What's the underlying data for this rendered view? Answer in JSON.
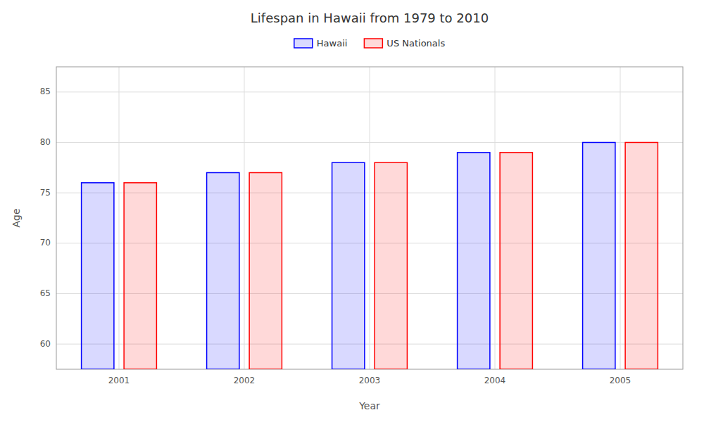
{
  "chart_data": {
    "type": "bar",
    "title": "Lifespan in Hawaii from 1979 to 2010",
    "x_label": "Year",
    "y_label": "Age",
    "categories": [
      "2001",
      "2002",
      "2003",
      "2004",
      "2005"
    ],
    "series": [
      {
        "name": "Hawaii",
        "color": "#0000ff",
        "values": [
          76.0,
          77.0,
          78.0,
          79.0,
          80.0
        ]
      },
      {
        "name": "US Nationals",
        "color": "#ff0000",
        "values": [
          76.0,
          77.0,
          78.0,
          79.0,
          80.0
        ]
      }
    ],
    "ylim": [
      57.5,
      87.5
    ],
    "yticks": [
      60,
      65,
      70,
      75,
      80,
      85
    ],
    "grid": true,
    "legend": "top"
  }
}
